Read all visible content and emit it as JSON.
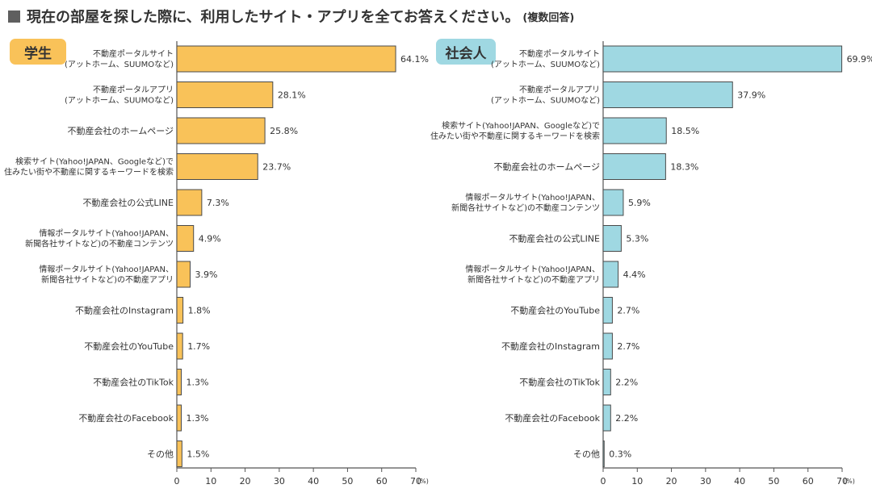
{
  "header": {
    "title": "現在の部屋を探した際に、利用したサイト・アプリを全てお答えください。",
    "note": "(複数回答)"
  },
  "colors": {
    "student_bar": "#f9c259",
    "worker_bar": "#9fd8e2",
    "bar_stroke": "#4a4a4a",
    "title_square": "#5f5f5f"
  },
  "chart_data": [
    {
      "type": "bar",
      "orientation": "horizontal",
      "badge": "学生",
      "categories": [
        [
          "不動産ポータルサイト",
          "(アットホーム、SUUMOなど)"
        ],
        [
          "不動産ポータルアプリ",
          "(アットホーム、SUUMOなど)"
        ],
        [
          "不動産会社のホームページ"
        ],
        [
          "検索サイト(Yahoo!JAPAN、Googleなど)で",
          "住みたい街や不動産に関するキーワードを検索"
        ],
        [
          "不動産会社の公式LINE"
        ],
        [
          "情報ポータルサイト(Yahoo!JAPAN、",
          "新聞各社サイトなど)の不動産コンテンツ"
        ],
        [
          "情報ポータルサイト(Yahoo!JAPAN、",
          "新聞各社サイトなど)の不動産アプリ"
        ],
        [
          "不動産会社のInstagram"
        ],
        [
          "不動産会社のYouTube"
        ],
        [
          "不動産会社のTikTok"
        ],
        [
          "不動産会社のFacebook"
        ],
        [
          "その他"
        ]
      ],
      "values": [
        64.1,
        28.1,
        25.8,
        23.7,
        7.3,
        4.9,
        3.9,
        1.8,
        1.7,
        1.3,
        1.3,
        1.5
      ],
      "value_labels": [
        "64.1%",
        "28.1%",
        "25.8%",
        "23.7%",
        "7.3%",
        "4.9%",
        "3.9%",
        "1.8%",
        "1.7%",
        "1.3%",
        "1.3%",
        "1.5%"
      ],
      "xlim": [
        0,
        70
      ],
      "xticks": [
        "0",
        "10",
        "20",
        "30",
        "40",
        "50",
        "60",
        "70"
      ],
      "unit": "(%)"
    },
    {
      "type": "bar",
      "orientation": "horizontal",
      "badge": "社会人",
      "categories": [
        [
          "不動産ポータルサイト",
          "(アットホーム、SUUMOなど)"
        ],
        [
          "不動産ポータルアプリ",
          "(アットホーム、SUUMOなど)"
        ],
        [
          "検索サイト(Yahoo!JAPAN、Googleなど)で",
          "住みたい街や不動産に関するキーワードを検索"
        ],
        [
          "不動産会社のホームページ"
        ],
        [
          "情報ポータルサイト(Yahoo!JAPAN、",
          "新聞各社サイトなど)の不動産コンテンツ"
        ],
        [
          "不動産会社の公式LINE"
        ],
        [
          "情報ポータルサイト(Yahoo!JAPAN、",
          "新聞各社サイトなど)の不動産アプリ"
        ],
        [
          "不動産会社のYouTube"
        ],
        [
          "不動産会社のInstagram"
        ],
        [
          "不動産会社のTikTok"
        ],
        [
          "不動産会社のFacebook"
        ],
        [
          "その他"
        ]
      ],
      "values": [
        69.9,
        37.9,
        18.5,
        18.3,
        5.9,
        5.3,
        4.4,
        2.7,
        2.7,
        2.2,
        2.2,
        0.3
      ],
      "value_labels": [
        "69.9%",
        "37.9%",
        "18.5%",
        "18.3%",
        "5.9%",
        "5.3%",
        "4.4%",
        "2.7%",
        "2.7%",
        "2.2%",
        "2.2%",
        "0.3%"
      ],
      "xlim": [
        0,
        70
      ],
      "xticks": [
        "0",
        "10",
        "20",
        "30",
        "40",
        "50",
        "60",
        "70"
      ],
      "unit": "(%)"
    }
  ]
}
